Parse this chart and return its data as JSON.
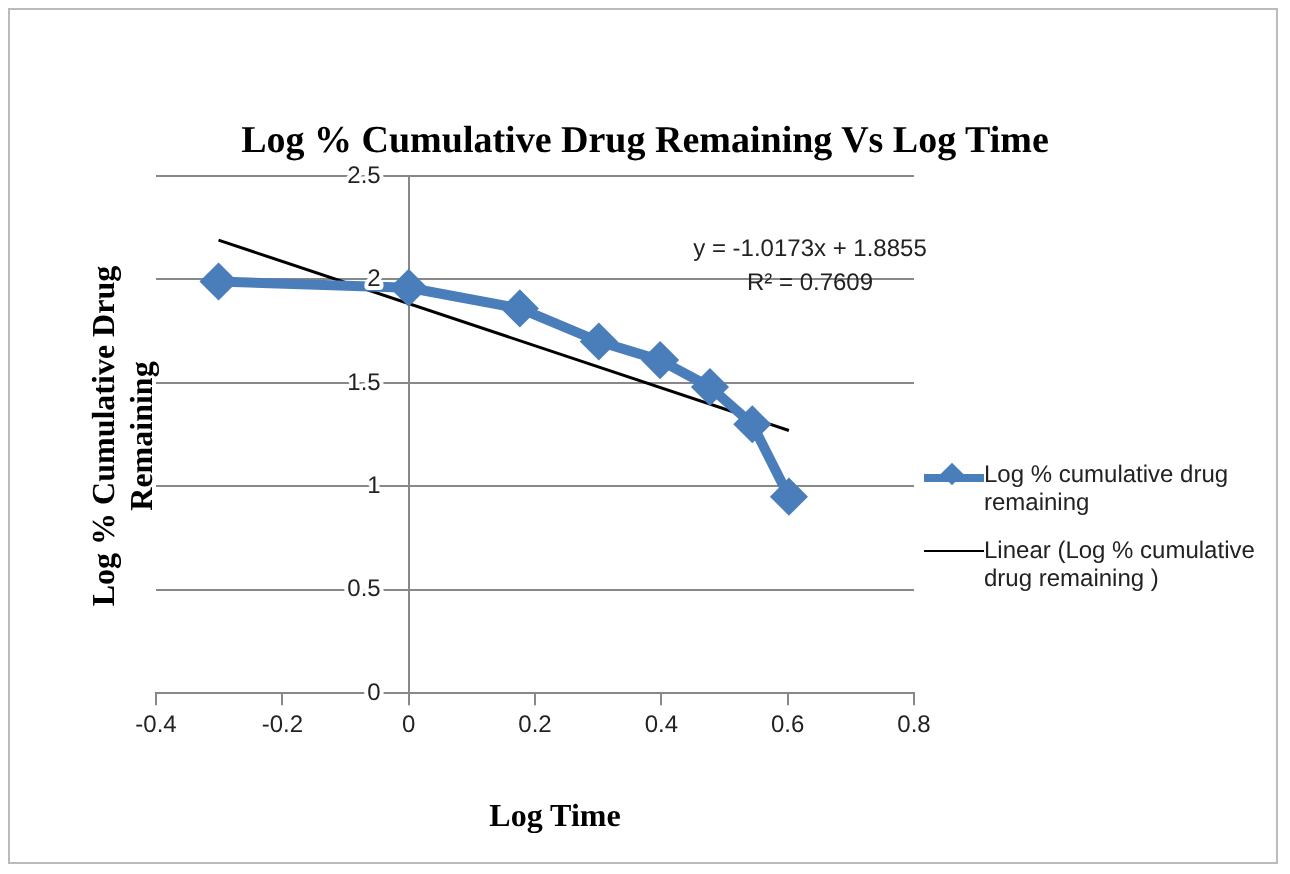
{
  "chart_data": {
    "type": "line",
    "title": "Log % Cumulative Drug Remaining Vs Log Time",
    "xlabel": "Log Time",
    "ylabel": "Log % Cumulative Drug Remaining",
    "x": [
      -0.301,
      0,
      0.176,
      0.301,
      0.398,
      0.477,
      0.544,
      0.602
    ],
    "series": [
      {
        "name": "Log % cumulative drug remaining",
        "color": "#4a7ebb",
        "values": [
          1.99,
          1.96,
          1.86,
          1.7,
          1.61,
          1.48,
          1.3,
          0.95
        ],
        "marker": "diamond"
      },
      {
        "name": "Linear (Log % cumulative drug remaining  )",
        "type": "line",
        "color": "#000000",
        "x": [
          -0.301,
          0.602
        ],
        "values": [
          2.19,
          1.27
        ],
        "marker": "none"
      }
    ],
    "xlim": [
      -0.4,
      0.8
    ],
    "xticks": [
      -0.4,
      -0.2,
      0,
      0.2,
      0.4,
      0.6,
      0.8
    ],
    "ylim": [
      0,
      2.5
    ],
    "yticks": [
      0,
      0.5,
      1,
      1.5,
      2,
      2.5
    ],
    "grid": "y",
    "legend": "right",
    "annotations": [
      "y = -1.0173x + 1.8855",
      "R² = 0.7609"
    ]
  }
}
